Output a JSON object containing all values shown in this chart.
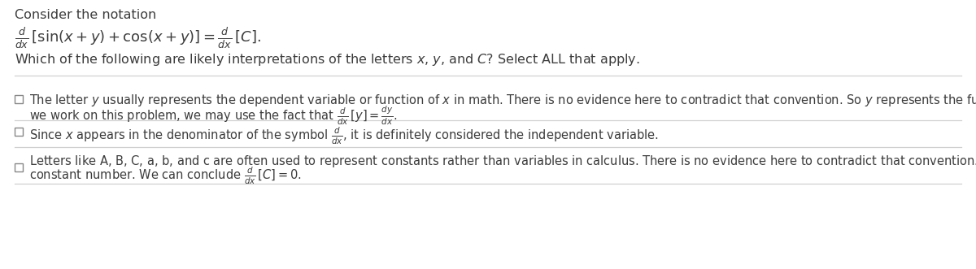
{
  "bg_color": "#ffffff",
  "text_color": "#3c3c3c",
  "header_text": "Consider the notation",
  "line_color": "#d0d0d0",
  "checkbox_color": "#888888",
  "font_size_header": 11.5,
  "font_size_eq": 13,
  "font_size_question": 11.5,
  "font_size_option": 10.5,
  "figw": 12.0,
  "figh": 3.31
}
